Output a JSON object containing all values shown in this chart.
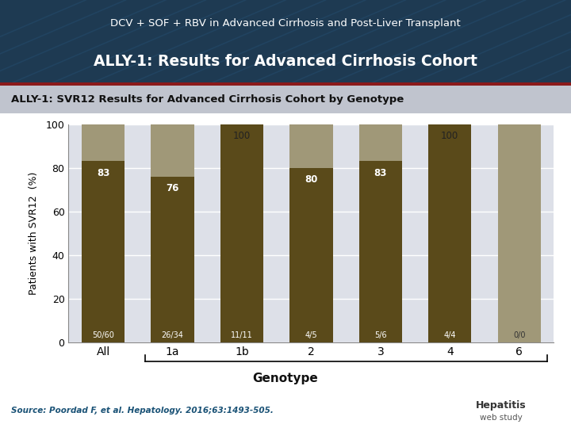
{
  "title_line1": "DCV + SOF + RBV in Advanced Cirrhosis and Post-Liver Transplant",
  "title_line2": "ALLY-1: Results for Advanced Cirrhosis Cohort",
  "subtitle": "ALLY-1: SVR12 Results for Advanced Cirrhosis Cohort by Genotype",
  "categories": [
    "All",
    "1a",
    "1b",
    "2",
    "3",
    "4",
    "6"
  ],
  "svr_values": [
    83,
    76,
    100,
    80,
    83,
    100,
    0
  ],
  "fractions": [
    "50/60",
    "26/34",
    "11/11",
    "4/5",
    "5/6",
    "4/4",
    "0/0"
  ],
  "bar_color_main": "#5a4a1a",
  "bar_color_top": "#a09878",
  "ylabel": "Patients with SVR12  (%)",
  "xlabel": "Genotype",
  "ylim": [
    0,
    100
  ],
  "yticks": [
    0,
    20,
    40,
    60,
    80,
    100
  ],
  "header_bg": "#1e3a52",
  "chart_bg": "#dde0e8",
  "subtitle_bg": "#c0c4ce",
  "source_text": "Source: Poordad F, et al. Hepatology. 2016;63:1493-505.",
  "source_color": "#1a5276",
  "fig_bg": "#ffffff",
  "header_line_color": "#8b1a1a"
}
